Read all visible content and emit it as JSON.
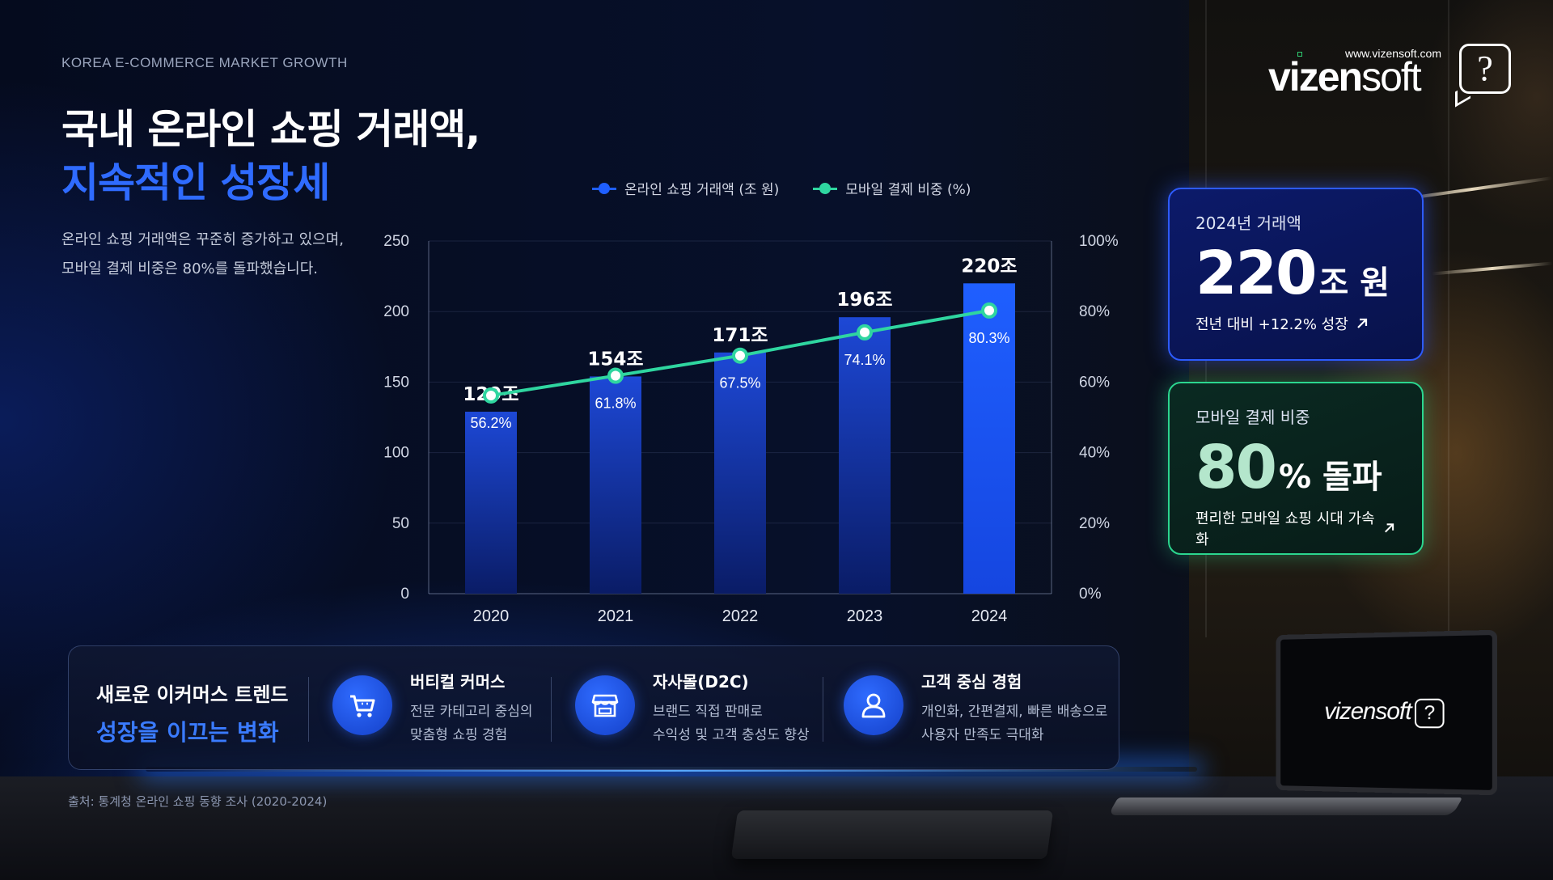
{
  "header": {
    "eyebrow": "KOREA E-COMMERCE MARKET GROWTH",
    "title_line1": "국내 온라인 쇼핑 거래액,",
    "title_line2": "지속적인 성장세",
    "desc_line1": "온라인 쇼핑 거래액은 꾸준히 증가하고 있으며,",
    "desc_line2": "모바일 결제 비중은 80%를 돌파했습니다."
  },
  "brand": {
    "url": "www.vizensoft.com",
    "name_bold": "vizen",
    "name_light": "soft",
    "mark": "?"
  },
  "legend": {
    "bar_label": "온라인 쇼핑 거래액 (조 원)",
    "line_label": "모바일 결제 비중 (%)"
  },
  "chart_data": {
    "type": "bar",
    "categories": [
      "2020",
      "2021",
      "2022",
      "2023",
      "2024"
    ],
    "series": [
      {
        "name": "온라인 쇼핑 거래액 (조 원)",
        "type": "bar",
        "axis": "left",
        "values": [
          129,
          154,
          171,
          196,
          220
        ],
        "labels": [
          "129조",
          "154조",
          "171조",
          "196조",
          "220조"
        ]
      },
      {
        "name": "모바일 결제 비중 (%)",
        "type": "line",
        "axis": "right",
        "values": [
          56.2,
          61.8,
          67.5,
          74.1,
          80.3
        ],
        "labels": [
          "56.2%",
          "61.8%",
          "67.5%",
          "74.1%",
          "80.3%"
        ]
      }
    ],
    "ylim_left": [
      0,
      250
    ],
    "yticks_left": [
      "0",
      "50",
      "100",
      "150",
      "200",
      "250"
    ],
    "ylim_right": [
      0,
      100
    ],
    "yticks_right": [
      "0%",
      "20%",
      "40%",
      "60%",
      "80%",
      "100%"
    ],
    "grid": true,
    "legend_position": "top",
    "colors": {
      "bar": "#1d4bd8",
      "bar_highlight": "#1f5fff",
      "line": "#2fd6a0"
    }
  },
  "stats": {
    "revenue": {
      "label": "2024년 거래액",
      "value": "220",
      "unit": "조 원",
      "sub": "전년 대비 +12.2% 성장"
    },
    "mobile": {
      "label": "모바일 결제 비중",
      "value": "80",
      "unit": "% 돌파",
      "sub": "편리한 모바일 쇼핑 시대 가속화"
    }
  },
  "trends": {
    "heading1": "새로운 이커머스 트렌드",
    "heading2": "성장을 이끄는 변화",
    "items": [
      {
        "icon": "shopping-cart-icon",
        "title": "버티컬 커머스",
        "desc1": "전문 카테고리 중심의",
        "desc2": "맞춤형 쇼핑 경험"
      },
      {
        "icon": "storefront-icon",
        "title": "자사몰(D2C)",
        "desc1": "브랜드 직접 판매로",
        "desc2": "수익성 및 고객 충성도 향상"
      },
      {
        "icon": "user-icon",
        "title": "고객 중심 경험",
        "desc1": "개인화, 간편결제, 빠른 배송으로",
        "desc2": "사용자 만족도 극대화"
      }
    ]
  },
  "source": "출처: 통계청 온라인 쇼핑 동향 조사 (2020-2024)",
  "laptop": {
    "logo": "vizensoft",
    "mark": "?"
  }
}
